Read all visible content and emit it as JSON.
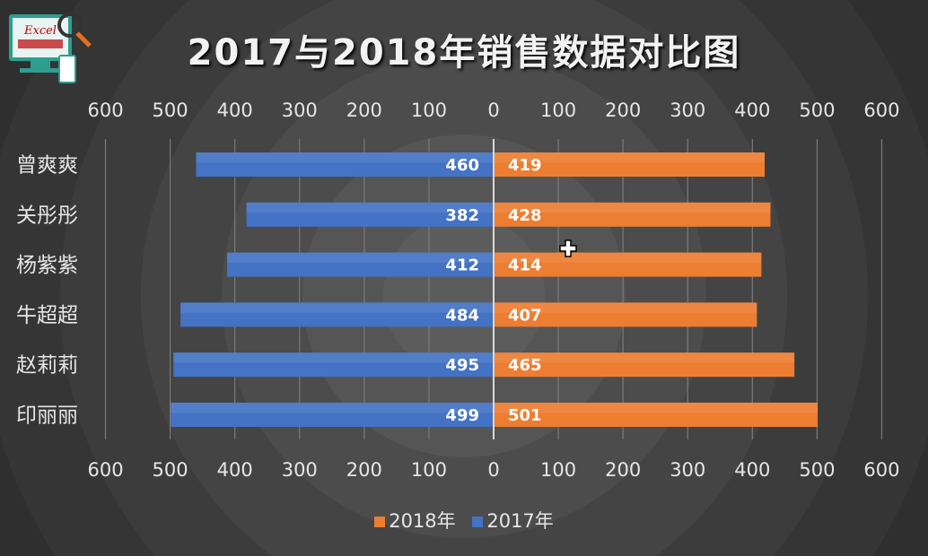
{
  "title": "2017与2018年销售数据对比图",
  "logo": {
    "text": "Excel"
  },
  "colors": {
    "series_2018": "#ed7d31",
    "series_2017": "#4472c4"
  },
  "chart_data": {
    "type": "bar",
    "orientation": "horizontal-butterfly",
    "categories": [
      "曾爽爽",
      "关彤彤",
      "杨紫紫",
      "牛超超",
      "赵莉莉",
      "印丽丽"
    ],
    "series": [
      {
        "name": "2017年",
        "values": [
          460,
          382,
          412,
          484,
          495,
          499
        ],
        "side": "left"
      },
      {
        "name": "2018年",
        "values": [
          419,
          428,
          414,
          407,
          465,
          501
        ],
        "side": "right"
      }
    ],
    "xlim": [
      0,
      600
    ],
    "xticks": [
      "600",
      "500",
      "400",
      "300",
      "200",
      "100",
      "0",
      "100",
      "200",
      "300",
      "400",
      "500",
      "600"
    ],
    "grid": true,
    "legend_placement": "bottom",
    "legend": [
      "2018年",
      "2017年"
    ]
  }
}
